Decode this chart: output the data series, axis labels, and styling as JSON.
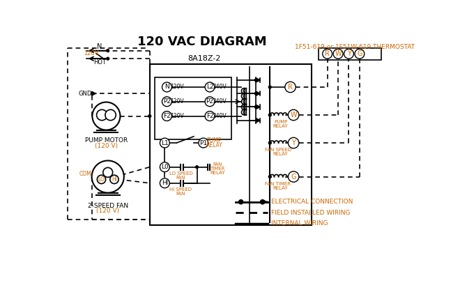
{
  "title": "120 VAC DIAGRAM",
  "background_color": "#ffffff",
  "line_color": "#000000",
  "orange_color": "#cc6600",
  "thermostat_label": "1F51-619 or 1F51W-619 THERMOSTAT",
  "control_box_label": "8A18Z-2",
  "terminal_labels": [
    "R",
    "W",
    "Y",
    "G"
  ],
  "left_term_labels": [
    "N",
    "P2",
    "F2"
  ],
  "right_term_labels": [
    "L2",
    "P2",
    "F2"
  ],
  "voltage_left": [
    "120V",
    "120V",
    "120V"
  ],
  "voltage_right": [
    "240V",
    "240V",
    "240V"
  ],
  "pump_motor_label": "PUMP MOTOR\n(120 V)",
  "fan_label": "2-SPEED FAN\n(120 V)",
  "legend_items": [
    {
      "label": "INTERNAL WIRING",
      "style": "solid"
    },
    {
      "label": "FIELD INSTALLED WIRING",
      "style": "dashed"
    },
    {
      "label": "ELECTRICAL CONNECTION",
      "style": "dot"
    }
  ]
}
